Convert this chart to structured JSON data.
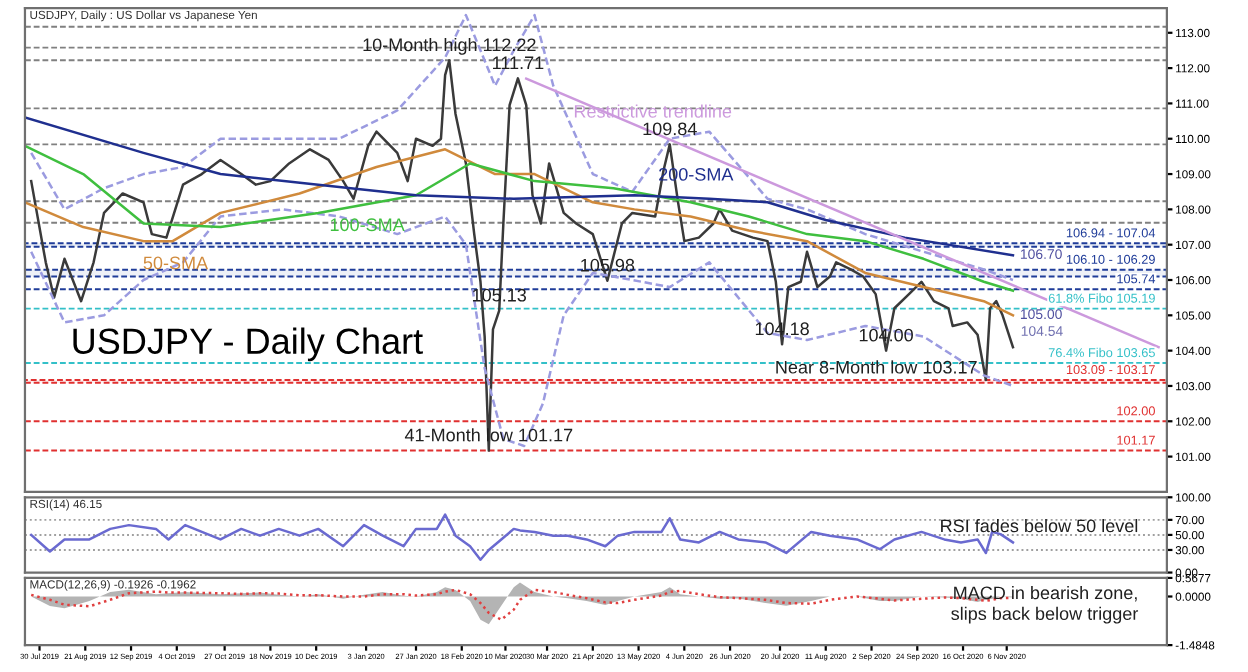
{
  "chart_data": [
    {
      "type": "line",
      "title": "USDJPY - Daily Chart",
      "subtitle": "USDJPY, Daily : US Dollar vs Japanese Yen",
      "tick_labels": "y",
      "xlim": [
        "2019-07-23",
        "2021-01-22"
      ],
      "ylim": [
        100.0,
        113.7
      ],
      "yticks": [
        {
          "value": 101,
          "label": "101.00"
        },
        {
          "value": 102,
          "label": "102.00"
        },
        {
          "value": 103,
          "label": "103.00"
        },
        {
          "value": 104,
          "label": "104.00"
        },
        {
          "value": 105,
          "label": "105.00"
        },
        {
          "value": 106,
          "label": "106.00"
        },
        {
          "value": 107,
          "label": "107.00"
        },
        {
          "value": 108,
          "label": "108.00"
        },
        {
          "value": 109,
          "label": "109.00"
        },
        {
          "value": 110,
          "label": "110.00"
        },
        {
          "value": 111,
          "label": "111.00"
        },
        {
          "value": 112,
          "label": "112.00"
        },
        {
          "value": 113,
          "label": "113.00"
        }
      ],
      "series": [
        {
          "color": "#3a3a3a",
          "x": [
            "2019-07-26",
            "2019-08-02",
            "2019-08-06",
            "2019-08-11",
            "2019-08-19",
            "2019-08-25",
            "2019-08-30",
            "2019-09-08",
            "2019-09-18",
            "2019-09-22",
            "2019-09-29",
            "2019-10-07",
            "2019-10-16",
            "2019-10-25",
            "2019-11-04",
            "2019-11-11",
            "2019-11-18",
            "2019-11-27",
            "2019-12-07",
            "2019-12-16",
            "2019-12-23",
            "2019-12-28",
            "2020-01-04",
            "2020-01-08",
            "2020-01-18",
            "2020-01-23",
            "2020-01-27",
            "2020-02-04",
            "2020-02-08",
            "2020-02-10",
            "2020-02-12",
            "2020-02-15",
            "2020-02-20",
            "2020-02-24",
            "2020-02-27",
            "2020-02-29",
            "2020-03-02",
            "2020-03-04",
            "2020-03-07",
            "2020-03-09",
            "2020-03-12",
            "2020-03-16",
            "2020-03-20",
            "2020-03-23",
            "2020-03-27",
            "2020-03-31",
            "2020-04-07",
            "2020-04-13",
            "2020-04-21",
            "2020-04-28",
            "2020-05-05",
            "2020-05-10",
            "2020-05-21",
            "2020-05-25",
            "2020-05-28",
            "2020-06-01",
            "2020-06-04",
            "2020-06-11",
            "2020-06-18",
            "2020-06-21",
            "2020-06-27",
            "2020-07-07",
            "2020-07-14",
            "2020-07-18",
            "2020-07-21",
            "2020-07-24",
            "2020-07-30",
            "2020-08-02",
            "2020-08-07",
            "2020-08-13",
            "2020-08-16",
            "2020-08-23",
            "2020-08-29",
            "2020-09-04",
            "2020-09-09",
            "2020-09-13",
            "2020-09-20",
            "2020-09-26",
            "2020-10-02",
            "2020-10-09",
            "2020-10-11",
            "2020-10-18",
            "2020-10-23",
            "2020-10-27",
            "2020-10-29",
            "2020-11-01",
            "2020-11-04",
            "2020-11-09"
          ],
          "values": [
            108.8,
            106.5,
            105.5,
            106.6,
            105.4,
            106.5,
            107.9,
            108.45,
            108.2,
            107.3,
            107.2,
            108.7,
            109.0,
            109.4,
            109.0,
            108.7,
            108.8,
            109.3,
            109.7,
            109.4,
            108.8,
            108.3,
            109.8,
            110.2,
            109.6,
            108.8,
            110.0,
            109.8,
            110.0,
            111.8,
            112.22,
            110.7,
            109.3,
            107.3,
            105.95,
            104.4,
            101.17,
            104.6,
            105.13,
            107.6,
            110.95,
            111.71,
            110.95,
            108.4,
            107.6,
            109.3,
            107.9,
            107.6,
            107.3,
            105.98,
            107.6,
            107.9,
            107.8,
            109.1,
            109.84,
            108.2,
            107.1,
            107.2,
            107.6,
            108.0,
            107.4,
            107.2,
            107.1,
            105.95,
            104.18,
            105.8,
            105.95,
            106.8,
            105.8,
            106.1,
            106.5,
            106.3,
            106.1,
            105.6,
            104.0,
            105.2,
            105.6,
            105.95,
            105.4,
            105.2,
            104.7,
            104.8,
            104.45,
            103.17,
            105.2,
            105.4,
            105.0,
            104.1
          ]
        },
        {
          "color": "#9b9be0",
          "line_style": "dashed",
          "x": [
            "2019-07-26",
            "2019-08-11",
            "2019-08-30",
            "2019-09-18",
            "2019-10-07",
            "2019-10-25",
            "2019-11-24",
            "2019-12-21",
            "2020-01-18",
            "2020-02-10",
            "2020-02-20",
            "2020-03-05",
            "2020-03-14",
            "2020-03-24",
            "2020-04-02",
            "2020-04-21",
            "2020-05-10",
            "2020-05-28",
            "2020-06-16",
            "2020-07-14",
            "2020-08-02",
            "2020-08-30",
            "2020-09-27",
            "2020-10-26",
            "2020-11-09"
          ],
          "values": [
            109.6,
            108.0,
            108.6,
            109.0,
            109.2,
            110.0,
            110.0,
            110.0,
            110.8,
            112.3,
            113.5,
            111.5,
            112.5,
            113.5,
            111.5,
            109.0,
            108.5,
            110.0,
            110.2,
            108.3,
            108.0,
            107.3,
            106.8,
            106.3,
            106.0
          ]
        },
        {
          "color": "#9b9be0",
          "line_style": "dashed",
          "x": [
            "2019-07-26",
            "2019-08-11",
            "2019-08-30",
            "2019-09-18",
            "2019-10-07",
            "2019-10-25",
            "2019-11-24",
            "2019-12-21",
            "2020-01-18",
            "2020-02-10",
            "2020-02-20",
            "2020-02-29",
            "2020-03-09",
            "2020-03-19",
            "2020-03-28",
            "2020-04-07",
            "2020-04-21",
            "2020-05-10",
            "2020-05-28",
            "2020-06-16",
            "2020-07-14",
            "2020-08-02",
            "2020-08-30",
            "2020-09-27",
            "2020-10-26",
            "2020-11-09"
          ],
          "values": [
            106.8,
            104.8,
            105.0,
            106.0,
            106.5,
            107.8,
            108.0,
            107.8,
            107.3,
            107.8,
            107.0,
            103.5,
            101.5,
            101.3,
            102.5,
            105.0,
            106.2,
            106.0,
            105.8,
            106.5,
            104.5,
            104.3,
            104.7,
            104.4,
            103.3,
            103.0
          ]
        },
        {
          "name": "50-SMA",
          "color": "#d08a3c",
          "x": [
            "2019-07-23",
            "2019-08-20",
            "2019-09-18",
            "2019-10-02",
            "2019-10-25",
            "2019-12-02",
            "2020-01-08",
            "2020-02-10",
            "2020-03-05",
            "2020-03-24",
            "2020-04-21",
            "2020-05-11",
            "2020-06-07",
            "2020-07-05",
            "2020-08-02",
            "2020-08-30",
            "2020-09-27",
            "2020-10-26",
            "2020-11-09"
          ],
          "values": [
            108.2,
            107.5,
            107.1,
            107.1,
            107.9,
            108.45,
            109.2,
            109.7,
            109.0,
            109.0,
            108.2,
            108.0,
            107.8,
            107.4,
            107.1,
            106.2,
            105.8,
            105.4,
            105.0
          ]
        },
        {
          "name": "100-SMA",
          "color": "#3fbf3f",
          "x": [
            "2019-07-23",
            "2019-08-20",
            "2019-09-18",
            "2019-10-25",
            "2019-12-11",
            "2020-01-27",
            "2020-02-22",
            "2020-03-24",
            "2020-05-01",
            "2020-06-07",
            "2020-07-05",
            "2020-08-02",
            "2020-08-30",
            "2020-09-27",
            "2020-10-26",
            "2020-11-09"
          ],
          "values": [
            109.8,
            109.0,
            107.6,
            107.5,
            107.9,
            108.4,
            109.3,
            108.8,
            108.6,
            108.2,
            107.8,
            107.3,
            107.1,
            106.6,
            105.95,
            105.7
          ]
        },
        {
          "name": "200-SMA",
          "color": "#1f2f8f",
          "x": [
            "2019-07-23",
            "2019-09-18",
            "2019-10-25",
            "2019-12-11",
            "2020-01-27",
            "2020-03-14",
            "2020-05-11",
            "2020-06-16",
            "2020-07-14",
            "2020-08-11",
            "2020-09-18",
            "2020-11-09"
          ],
          "values": [
            110.6,
            109.6,
            109.0,
            108.7,
            108.4,
            108.3,
            108.4,
            108.3,
            108.2,
            107.7,
            107.2,
            106.7
          ]
        },
        {
          "name": "Restrictive trendline",
          "color": "#cc99dd",
          "x": [
            "2020-03-20",
            "2021-01-18"
          ],
          "values": [
            111.7,
            104.1
          ]
        }
      ],
      "ref_lines": [
        {
          "axis": "y",
          "value": 113.17,
          "color": "#808080",
          "line_style": "dashed"
        },
        {
          "axis": "y",
          "value": 112.58,
          "color": "#808080",
          "line_style": "dashed"
        },
        {
          "axis": "y",
          "value": 112.22,
          "color": "#808080",
          "line_style": "dashed"
        },
        {
          "axis": "y",
          "value": 110.86,
          "color": "#808080",
          "line_style": "dashed"
        },
        {
          "axis": "y",
          "value": 109.84,
          "color": "#808080",
          "line_style": "dashed"
        },
        {
          "axis": "y",
          "value": 108.23,
          "color": "#808080",
          "line_style": "dashed"
        },
        {
          "axis": "y",
          "value": 107.62,
          "color": "#808080",
          "line_style": "dashed"
        },
        {
          "axis": "y",
          "value": 105.74,
          "label": "105.74",
          "color": "#1f3c99",
          "line_style": "dashed"
        },
        {
          "axis": "y",
          "value": 105.19,
          "label": "61.8% Fibo 105.19",
          "color": "#33c0c8",
          "line_style": "dashed"
        },
        {
          "axis": "y",
          "value": 103.65,
          "label": "76.4% Fibo 103.65",
          "color": "#33c0c8",
          "line_style": "dashed"
        },
        {
          "axis": "y",
          "value": 102.0,
          "label": "102.00",
          "color": "#e03030",
          "line_style": "dashed"
        },
        {
          "axis": "y",
          "value": 101.17,
          "label": "101.17",
          "color": "#e03030",
          "line_style": "dashed"
        }
      ],
      "bands": [
        {
          "axis": "y",
          "from": 106.94,
          "to": 107.04,
          "label": "106.94 - 107.04",
          "color": "#1f3c99"
        },
        {
          "axis": "y",
          "from": 106.1,
          "to": 106.29,
          "label": "106.10 - 106.29",
          "color": "#1f3c99"
        },
        {
          "axis": "y",
          "from": 103.09,
          "to": 103.17,
          "label": "103.09 - 103.17",
          "color": "#e03030"
        }
      ],
      "annotations": [
        {
          "text": "10-Month high 112.22",
          "x": "2020-02-12",
          "y": 112.22
        },
        {
          "text": "111.71",
          "x": "2020-03-16",
          "y": 111.71
        },
        {
          "text": "109.84",
          "x": "2020-05-28",
          "y": 109.84
        },
        {
          "text": "105.13",
          "x": "2020-03-07",
          "y": 105.13
        },
        {
          "text": "105.98",
          "x": "2020-04-28",
          "y": 105.98
        },
        {
          "text": "104.18",
          "x": "2020-07-21",
          "y": 104.18
        },
        {
          "text": "104.00",
          "x": "2020-09-09",
          "y": 104.0
        },
        {
          "text": "Near 8-Month low 103.17",
          "x": "2020-10-27",
          "y": 103.17
        },
        {
          "text": "41-Month low 101.17",
          "x": "2020-03-02",
          "y": 101.17
        },
        {
          "text": "106.70",
          "x": "2020-11-09",
          "y": 106.7
        },
        {
          "text": "105.00",
          "x": "2020-11-09",
          "y": 105.0
        },
        "104.54"
      ]
    },
    {
      "type": "line",
      "title": "RSI(14) 46.15",
      "tick_labels": "y",
      "x": [
        "2019-07-26",
        "2019-08-04",
        "2019-08-11",
        "2019-08-23",
        "2019-09-02",
        "2019-09-11",
        "2019-09-24",
        "2019-09-30",
        "2019-10-08",
        "2019-10-25",
        "2019-11-04",
        "2019-11-13",
        "2019-11-22",
        "2019-12-02",
        "2019-12-11",
        "2019-12-23",
        "2020-01-02",
        "2020-01-11",
        "2020-01-21",
        "2020-01-27",
        "2020-02-06",
        "2020-02-10",
        "2020-02-15",
        "2020-02-22",
        "2020-02-27",
        "2020-03-02",
        "2020-03-08",
        "2020-03-14",
        "2020-03-17",
        "2020-03-24",
        "2020-04-02",
        "2020-04-09",
        "2020-04-18",
        "2020-04-27",
        "2020-05-03",
        "2020-05-11",
        "2020-05-24",
        "2020-05-28",
        "2020-06-02",
        "2020-06-11",
        "2020-06-21",
        "2020-06-30",
        "2020-07-13",
        "2020-07-23",
        "2020-08-04",
        "2020-08-13",
        "2020-08-26",
        "2020-09-06",
        "2020-09-13",
        "2020-09-26",
        "2020-10-07",
        "2020-10-15",
        "2020-10-23",
        "2020-10-27",
        "2020-10-30",
        "2020-11-03",
        "2020-11-09"
      ],
      "xlim": [
        "2019-07-23",
        "2021-01-22"
      ],
      "ylim": [
        0,
        100
      ],
      "yticks": [
        {
          "value": 0,
          "label": "0.00"
        },
        {
          "value": 30,
          "label": "30.00"
        },
        {
          "value": 50,
          "label": "50.00"
        },
        {
          "value": 70,
          "label": "70.00"
        },
        {
          "value": 100,
          "label": "100.00"
        }
      ],
      "series": [
        {
          "color": "#6a6ad0",
          "values": [
            50,
            28,
            44,
            44,
            58,
            63,
            58,
            44,
            63,
            44,
            58,
            49,
            58,
            49,
            58,
            35,
            63,
            49,
            35,
            58,
            58,
            77,
            49,
            35,
            17,
            30,
            44,
            58,
            56,
            54,
            49,
            49,
            44,
            35,
            49,
            54,
            54,
            72,
            44,
            40,
            54,
            44,
            40,
            26,
            54,
            49,
            44,
            31,
            44,
            54,
            44,
            40,
            44,
            26,
            54,
            51,
            40
          ]
        }
      ],
      "ref_lines": [
        {
          "axis": "y",
          "value": 70,
          "color": "#a0a0a0",
          "line_style": "dotted"
        },
        {
          "axis": "y",
          "value": 50,
          "color": "#a0a0a0",
          "line_style": "dotted"
        },
        {
          "axis": "y",
          "value": 30,
          "color": "#a0a0a0",
          "line_style": "dotted"
        }
      ],
      "annotations": [
        "RSI fades below 50 level"
      ]
    },
    {
      "type": "area",
      "title": "MACD(12,26,9) -0.1926 -0.1962",
      "x": [
        "2019-07-26",
        "2019-08-04",
        "2019-08-11",
        "2019-08-23",
        "2019-09-02",
        "2019-09-11",
        "2019-09-24",
        "2019-09-30",
        "2019-10-08",
        "2019-10-25",
        "2019-11-04",
        "2019-11-13",
        "2019-11-22",
        "2019-12-02",
        "2019-12-11",
        "2019-12-23",
        "2020-01-02",
        "2020-01-11",
        "2020-01-21",
        "2020-01-27",
        "2020-02-06",
        "2020-02-10",
        "2020-02-15",
        "2020-02-22",
        "2020-02-27",
        "2020-03-02",
        "2020-03-08",
        "2020-03-14",
        "2020-03-17",
        "2020-03-24",
        "2020-04-02",
        "2020-04-09",
        "2020-04-18",
        "2020-04-27",
        "2020-05-03",
        "2020-05-11",
        "2020-05-24",
        "2020-05-28",
        "2020-06-02",
        "2020-06-11",
        "2020-06-21",
        "2020-06-30",
        "2020-07-13",
        "2020-07-23",
        "2020-08-04",
        "2020-08-13",
        "2020-08-26",
        "2020-09-06",
        "2020-09-13",
        "2020-09-26",
        "2020-10-07",
        "2020-10-15",
        "2020-10-23",
        "2020-10-27",
        "2020-10-30",
        "2020-11-03",
        "2020-11-09"
      ],
      "xlim": [
        "2019-07-23",
        "2021-01-22"
      ],
      "ylim": [
        -1.4848,
        0.5677
      ],
      "xticks": [
        {
          "value": "2019-07-30",
          "label": "30 Jul 2019"
        },
        {
          "value": "2019-08-21",
          "label": "21 Aug 2019"
        },
        {
          "value": "2019-09-12",
          "label": "12 Sep 2019"
        },
        {
          "value": "2019-10-04",
          "label": "4 Oct 2019"
        },
        {
          "value": "2019-10-27",
          "label": "27 Oct 2019"
        },
        {
          "value": "2019-11-18",
          "label": "18 Nov 2019"
        },
        {
          "value": "2019-12-10",
          "label": "10 Dec 2019"
        },
        {
          "value": "2020-01-03",
          "label": "3 Jan 2020"
        },
        {
          "value": "2020-01-27",
          "label": "27 Jan 2020"
        },
        {
          "value": "2020-02-18",
          "label": "18 Feb 2020"
        },
        {
          "value": "2020-03-10",
          "label": "10 Mar 2020"
        },
        {
          "value": "2020-03-30",
          "label": "30 Mar 2020"
        },
        {
          "value": "2020-04-21",
          "label": "21 Apr 2020"
        },
        {
          "value": "2020-05-13",
          "label": "13 May 2020"
        },
        {
          "value": "2020-06-04",
          "label": "4 Jun 2020"
        },
        {
          "value": "2020-06-26",
          "label": "26 Jun 2020"
        },
        {
          "value": "2020-07-20",
          "label": "20 Jul 2020"
        },
        {
          "value": "2020-08-11",
          "label": "11 Aug 2020"
        },
        {
          "value": "2020-09-02",
          "label": "2 Sep 2020"
        },
        {
          "value": "2020-09-24",
          "label": "24 Sep 2020"
        },
        {
          "value": "2020-10-16",
          "label": "16 Oct 2020"
        },
        {
          "value": "2020-11-06",
          "label": "6 Nov 2020"
        }
      ],
      "yticks": [
        0.5677,
        {
          "value": 0,
          "label": "0.0000"
        },
        -1.4848
      ],
      "series": [
        {
          "color": "#b4b4b4",
          "values": [
            0,
            -0.29,
            -0.36,
            -0.14,
            0.14,
            0.21,
            0.07,
            0.1,
            0.14,
            0.07,
            0.1,
            0.12,
            0.05,
            0,
            0.07,
            -0.07,
            0.05,
            0.14,
            0.02,
            0,
            0.14,
            0.28,
            0.2,
            -0.14,
            -0.71,
            -0.85,
            -0.28,
            0.28,
            0.43,
            0.14,
            0,
            -0.05,
            -0.14,
            -0.26,
            -0.14,
            0,
            0.14,
            0.28,
            0.07,
            0,
            -0.07,
            -0.06,
            -0.2,
            -0.28,
            -0.14,
            0,
            0,
            -0.14,
            -0.14,
            0,
            -0.03,
            -0.07,
            -0.17,
            -0.1,
            -0.07,
            0,
            -0.03
          ]
        },
        {
          "type": "line",
          "color": "#e04040",
          "line_style": "dotted",
          "values": [
            0.05,
            -0.1,
            -0.25,
            -0.3,
            -0.1,
            0.1,
            0.15,
            0.12,
            0.12,
            0.1,
            0.08,
            0.1,
            0.09,
            0.04,
            0.04,
            0,
            0,
            0.07,
            0.07,
            0.03,
            0.07,
            0.15,
            0.2,
            0.07,
            -0.2,
            -0.5,
            -0.71,
            -0.4,
            -0.1,
            0.2,
            0.14,
            0.05,
            -0.05,
            -0.18,
            -0.2,
            -0.1,
            0.03,
            0.14,
            0.17,
            0.07,
            -0.02,
            -0.05,
            -0.1,
            -0.2,
            -0.22,
            -0.1,
            0,
            -0.07,
            -0.12,
            -0.07,
            -0.03,
            -0.05,
            -0.1,
            -0.13,
            -0.1,
            -0.05,
            -0.04
          ]
        }
      ],
      "annotations": [
        "MACD in bearish zone,\nslips back below trigger"
      ]
    }
  ]
}
